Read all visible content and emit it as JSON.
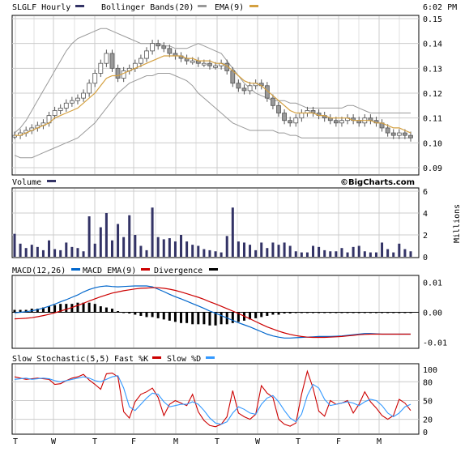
{
  "ticker_label": "SLGLF Hourly",
  "time": "6:02 PM",
  "brand": "©BigCharts.com",
  "colors": {
    "price": "#333366",
    "bollinger": "#999999",
    "ema": "#d4a040",
    "macd": "#0066cc",
    "macd_ema": "#cc0000",
    "divergence": "#000000",
    "fast_k": "#cc0000",
    "slow_d": "#3399ff",
    "volume": "#333366",
    "grid": "#cccccc",
    "candle": "#999999"
  },
  "x_tick_labels": [
    "T",
    "W",
    "T",
    "F",
    "M",
    "T",
    "W",
    "T",
    "F",
    "M"
  ],
  "chart_data": [
    {
      "id": "price",
      "type": "candlestick",
      "legend": [
        {
          "name": "SLGLF Hourly",
          "color_key": "price"
        },
        {
          "name": "Bollinger Bands(20)",
          "color_key": "bollinger"
        },
        {
          "name": "EMA(9)",
          "color_key": "ema"
        }
      ],
      "ylim": [
        0.09,
        0.15
      ],
      "yticks": [
        "0.15",
        "0.14",
        "0.13",
        "0.12",
        "0.11",
        "0.10",
        "0.09"
      ],
      "close": [
        0.103,
        0.104,
        0.105,
        0.106,
        0.107,
        0.108,
        0.111,
        0.113,
        0.114,
        0.116,
        0.117,
        0.118,
        0.12,
        0.124,
        0.128,
        0.132,
        0.136,
        0.13,
        0.126,
        0.129,
        0.13,
        0.132,
        0.134,
        0.137,
        0.14,
        0.139,
        0.138,
        0.136,
        0.135,
        0.134,
        0.133,
        0.133,
        0.132,
        0.132,
        0.131,
        0.131,
        0.132,
        0.129,
        0.124,
        0.122,
        0.121,
        0.123,
        0.124,
        0.123,
        0.118,
        0.115,
        0.112,
        0.109,
        0.108,
        0.11,
        0.112,
        0.113,
        0.112,
        0.111,
        0.11,
        0.109,
        0.108,
        0.109,
        0.11,
        0.109,
        0.108,
        0.11,
        0.109,
        0.108,
        0.106,
        0.104,
        0.103,
        0.104,
        0.103,
        0.102
      ],
      "upper_band": [
        0.104,
        0.106,
        0.109,
        0.113,
        0.117,
        0.121,
        0.125,
        0.129,
        0.133,
        0.137,
        0.14,
        0.142,
        0.143,
        0.144,
        0.145,
        0.146,
        0.146,
        0.145,
        0.144,
        0.143,
        0.142,
        0.141,
        0.14,
        0.14,
        0.14,
        0.14,
        0.139,
        0.139,
        0.138,
        0.138,
        0.138,
        0.139,
        0.14,
        0.139,
        0.138,
        0.137,
        0.136,
        0.133,
        0.13,
        0.127,
        0.124,
        0.122,
        0.12,
        0.119,
        0.118,
        0.117,
        0.117,
        0.117,
        0.116,
        0.116,
        0.115,
        0.114,
        0.114,
        0.114,
        0.114,
        0.114,
        0.114,
        0.114,
        0.115,
        0.115,
        0.114,
        0.113,
        0.112,
        0.112,
        0.112,
        0.112,
        0.112,
        0.112,
        0.112,
        0.112
      ],
      "lower_band": [
        0.095,
        0.094,
        0.094,
        0.094,
        0.095,
        0.096,
        0.097,
        0.098,
        0.099,
        0.1,
        0.101,
        0.102,
        0.104,
        0.106,
        0.108,
        0.111,
        0.114,
        0.117,
        0.12,
        0.122,
        0.124,
        0.125,
        0.126,
        0.127,
        0.127,
        0.128,
        0.128,
        0.128,
        0.127,
        0.126,
        0.125,
        0.123,
        0.12,
        0.118,
        0.116,
        0.114,
        0.112,
        0.11,
        0.108,
        0.107,
        0.106,
        0.105,
        0.105,
        0.105,
        0.105,
        0.105,
        0.104,
        0.104,
        0.103,
        0.103,
        0.102,
        0.102,
        0.102,
        0.102,
        0.102,
        0.102,
        0.102,
        0.102,
        0.102,
        0.102,
        0.102,
        0.102,
        0.102,
        0.102,
        0.102,
        0.102,
        0.102,
        0.102,
        0.102,
        0.102
      ],
      "ema": [
        0.103,
        0.103,
        0.104,
        0.105,
        0.106,
        0.107,
        0.108,
        0.11,
        0.111,
        0.112,
        0.113,
        0.114,
        0.116,
        0.118,
        0.12,
        0.123,
        0.126,
        0.127,
        0.127,
        0.128,
        0.129,
        0.13,
        0.131,
        0.132,
        0.133,
        0.134,
        0.135,
        0.135,
        0.135,
        0.135,
        0.134,
        0.134,
        0.133,
        0.133,
        0.133,
        0.132,
        0.132,
        0.131,
        0.129,
        0.127,
        0.125,
        0.124,
        0.124,
        0.123,
        0.121,
        0.119,
        0.117,
        0.115,
        0.113,
        0.112,
        0.112,
        0.112,
        0.112,
        0.111,
        0.111,
        0.11,
        0.11,
        0.11,
        0.11,
        0.109,
        0.109,
        0.109,
        0.109,
        0.108,
        0.108,
        0.107,
        0.106,
        0.106,
        0.105,
        0.104
      ]
    },
    {
      "id": "volume",
      "type": "bar",
      "legend": [
        {
          "name": "Volume",
          "color_key": "volume"
        }
      ],
      "ylim": [
        0,
        6
      ],
      "yticks": [
        "6",
        "4",
        "2",
        "0"
      ],
      "ylabel": "Millions",
      "values": [
        2.1,
        1.2,
        0.8,
        1.1,
        0.9,
        0.6,
        1.5,
        0.7,
        0.6,
        1.3,
        0.9,
        0.8,
        0.5,
        3.7,
        1.2,
        2.7,
        4.0,
        1.5,
        3.0,
        1.8,
        3.8,
        2.0,
        1.0,
        0.6,
        4.5,
        1.8,
        1.6,
        1.7,
        1.4,
        2.0,
        1.4,
        1.1,
        1.0,
        0.7,
        0.6,
        0.5,
        0.4,
        1.9,
        4.5,
        1.4,
        1.3,
        1.1,
        0.6,
        1.3,
        0.8,
        1.3,
        1.1,
        1.3,
        1.0,
        0.5,
        0.4,
        0.4,
        1.0,
        0.9,
        0.6,
        0.5,
        0.5,
        0.8,
        0.4,
        0.9,
        1.0,
        0.5,
        0.4,
        0.4,
        1.3,
        0.7,
        0.4,
        1.2,
        0.7,
        0.5
      ]
    },
    {
      "id": "macd",
      "type": "line",
      "legend": [
        {
          "name": "MACD(12,26)",
          "color_key": "macd"
        },
        {
          "name": "MACD EMA(9)",
          "color_key": "macd_ema"
        },
        {
          "name": "Divergence",
          "color_key": "divergence"
        }
      ],
      "ylim": [
        -0.0115,
        0.0115
      ],
      "yticks": [
        "0.01",
        "0.00",
        "-0.01"
      ],
      "macd": [
        -0.0002,
        0.0,
        0.0002,
        0.0005,
        0.0009,
        0.0014,
        0.002,
        0.0027,
        0.0035,
        0.0042,
        0.005,
        0.0058,
        0.0068,
        0.0076,
        0.0082,
        0.0086,
        0.0088,
        0.0086,
        0.0085,
        0.0086,
        0.0087,
        0.0088,
        0.0088,
        0.0088,
        0.0085,
        0.0077,
        0.0069,
        0.006,
        0.0052,
        0.0045,
        0.0037,
        0.0029,
        0.0021,
        0.0013,
        0.0004,
        -0.0003,
        -0.0011,
        -0.0019,
        -0.0027,
        -0.0035,
        -0.0042,
        -0.0049,
        -0.0057,
        -0.0065,
        -0.0073,
        -0.0079,
        -0.0083,
        -0.0086,
        -0.0086,
        -0.0085,
        -0.0084,
        -0.0083,
        -0.0082,
        -0.0081,
        -0.0081,
        -0.0081,
        -0.008,
        -0.0079,
        -0.0077,
        -0.0075,
        -0.0073,
        -0.0071,
        -0.0071,
        -0.0072,
        -0.0073,
        -0.0073,
        -0.0073,
        -0.0073,
        -0.0073,
        -0.0073
      ],
      "signal": [
        -0.0022,
        -0.0021,
        -0.002,
        -0.0018,
        -0.0015,
        -0.0011,
        -0.0007,
        -0.0002,
        0.0004,
        0.001,
        0.0016,
        0.0023,
        0.003,
        0.0038,
        0.0045,
        0.0052,
        0.0058,
        0.0064,
        0.0068,
        0.0072,
        0.0075,
        0.0078,
        0.008,
        0.0081,
        0.0082,
        0.0082,
        0.008,
        0.0077,
        0.0073,
        0.0068,
        0.0062,
        0.0056,
        0.005,
        0.0043,
        0.0035,
        0.0028,
        0.002,
        0.0012,
        0.0004,
        -0.0004,
        -0.0013,
        -0.0022,
        -0.0031,
        -0.004,
        -0.0049,
        -0.0056,
        -0.0063,
        -0.0069,
        -0.0074,
        -0.0078,
        -0.0081,
        -0.0083,
        -0.0084,
        -0.0084,
        -0.0084,
        -0.0083,
        -0.0082,
        -0.0081,
        -0.0079,
        -0.0077,
        -0.0075,
        -0.0074,
        -0.0073,
        -0.0073,
        -0.0073,
        -0.0073,
        -0.0073,
        -0.0073,
        -0.0073,
        -0.0073
      ],
      "divergence": [
        0.0002,
        0.0002,
        0.0002,
        0.0003,
        0.0003,
        0.0004,
        0.0005,
        0.0006,
        0.0007,
        0.0007,
        0.0007,
        0.0008,
        0.0008,
        0.0008,
        0.0007,
        0.0005,
        0.0004,
        0.0003,
        0.0001,
        0.0,
        -0.0001,
        -0.0002,
        -0.0003,
        -0.0004,
        -0.0004,
        -0.0005,
        -0.0006,
        -0.0007,
        -0.0008,
        -0.0009,
        -0.0009,
        -0.001,
        -0.001,
        -0.001,
        -0.0011,
        -0.0011,
        -0.001,
        -0.001,
        -0.0009,
        -0.0008,
        -0.0007,
        -0.0006,
        -0.0005,
        -0.0004,
        -0.0003,
        -0.0002,
        -0.0002,
        -0.0001,
        -0.0001,
        0.0,
        0.0,
        0.0,
        0.0,
        0.0,
        0.0,
        0.0,
        0.0,
        0.0,
        0.0,
        0.0,
        0.0,
        0.0,
        0.0,
        0.0,
        0.0,
        0.0,
        0.0,
        0.0,
        0.0,
        0.0
      ]
    },
    {
      "id": "stochastic",
      "type": "line",
      "legend": [
        {
          "name": "Slow Stochastic(5,5)",
          "color_key": "divergence"
        },
        {
          "name": "Fast %K",
          "color_key": "fast_k"
        },
        {
          "name": "Slow %D",
          "color_key": "slow_d"
        }
      ],
      "ylim": [
        0,
        100
      ],
      "yticks": [
        "100",
        "80",
        "50",
        "20",
        "0"
      ],
      "fast_k": [
        88,
        86,
        84,
        85,
        86,
        85,
        84,
        76,
        77,
        82,
        86,
        88,
        92,
        83,
        76,
        68,
        93,
        94,
        88,
        32,
        22,
        48,
        60,
        64,
        70,
        55,
        26,
        44,
        50,
        46,
        42,
        60,
        32,
        18,
        10,
        8,
        12,
        24,
        66,
        30,
        24,
        20,
        28,
        74,
        62,
        55,
        20,
        12,
        9,
        14,
        60,
        97,
        70,
        33,
        25,
        50,
        44,
        46,
        50,
        30,
        44,
        64,
        48,
        38,
        26,
        20,
        26,
        52,
        46,
        34
      ],
      "slow_d": [
        84,
        85,
        86,
        84,
        85,
        86,
        85,
        82,
        80,
        82,
        84,
        86,
        88,
        86,
        82,
        80,
        84,
        88,
        90,
        70,
        40,
        34,
        44,
        54,
        62,
        60,
        48,
        40,
        42,
        44,
        44,
        48,
        44,
        34,
        22,
        14,
        12,
        16,
        30,
        40,
        36,
        30,
        28,
        44,
        54,
        58,
        48,
        34,
        22,
        16,
        28,
        58,
        76,
        70,
        52,
        42,
        44,
        46,
        48,
        46,
        42,
        48,
        52,
        50,
        42,
        30,
        24,
        30,
        40,
        44
      ]
    }
  ]
}
